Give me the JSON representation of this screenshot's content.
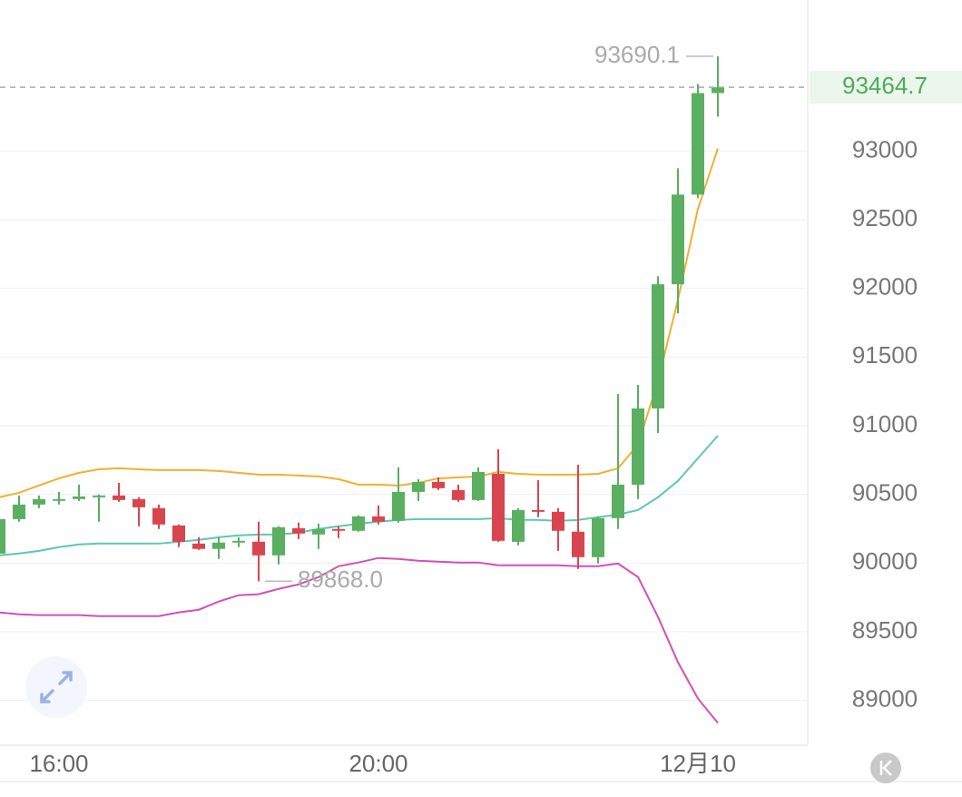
{
  "chart_data": {
    "type": "candlestick",
    "categories": [
      null,
      null,
      null,
      "16:00",
      null,
      null,
      null,
      null,
      null,
      null,
      null,
      null,
      null,
      null,
      null,
      null,
      null,
      null,
      null,
      "20:00",
      null,
      null,
      null,
      null,
      null,
      null,
      null,
      null,
      null,
      null,
      null,
      null,
      null,
      null,
      null,
      "12月10",
      null
    ],
    "open": [
      90069,
      90320,
      90426,
      90453,
      90466,
      90479,
      90492,
      90466,
      90400,
      90274,
      90142,
      90103,
      90149,
      90155,
      90056,
      90254,
      90208,
      90248,
      90235,
      90340,
      90307,
      90518,
      90591,
      90532,
      90459,
      90650,
      90155,
      90386,
      90373,
      90228,
      90043,
      90327,
      90571,
      91126,
      92030,
      92683,
      93422
    ],
    "high": [
      90334,
      90492,
      90492,
      90518,
      90571,
      90499,
      90584,
      90479,
      90426,
      90281,
      90188,
      90188,
      90188,
      90301,
      90268,
      90294,
      90287,
      90268,
      90347,
      90419,
      90697,
      90611,
      90624,
      90571,
      90697,
      90829,
      90400,
      90604,
      90400,
      90716,
      90340,
      91231,
      91297,
      92089,
      92875,
      93488,
      93690.1
    ],
    "low": [
      90056,
      90301,
      90400,
      90426,
      90452,
      90301,
      90446,
      90268,
      90248,
      90116,
      90096,
      90030,
      90116,
      89868,
      89990,
      90175,
      90103,
      90182,
      90228,
      90281,
      90294,
      90452,
      90532,
      90446,
      90452,
      90155,
      90129,
      90334,
      90089,
      89957,
      89997,
      90248,
      90466,
      90947,
      91819,
      92657,
      93251
    ],
    "close": [
      90320,
      90426,
      90466,
      90466,
      90485,
      90492,
      90459,
      90406,
      90281,
      90155,
      90103,
      90149,
      90162,
      90056,
      90261,
      90215,
      90248,
      90235,
      90340,
      90301,
      90518,
      90591,
      90545,
      90459,
      90664,
      90162,
      90386,
      90373,
      90235,
      90043,
      90327,
      90571,
      91126,
      92030,
      92683,
      93422,
      93464.7
    ],
    "up_color": "#5aaf60",
    "down_color": "#d9454f",
    "bands": [
      {
        "color": "#f0b030",
        "values": [
          90479,
          90512,
          90565,
          90617,
          90657,
          90683,
          90690,
          90683,
          90677,
          90677,
          90677,
          90670,
          90657,
          90644,
          90644,
          90637,
          90631,
          90611,
          90571,
          90571,
          90565,
          90584,
          90617,
          90624,
          90631,
          90664,
          90650,
          90644,
          90644,
          90644,
          90650,
          90690,
          90862,
          91324,
          91918,
          92578,
          93020
        ]
      },
      {
        "color": "#5cc9ae",
        "values": [
          90056,
          90070,
          90089,
          90116,
          90136,
          90142,
          90142,
          90142,
          90142,
          90155,
          90169,
          90188,
          90202,
          90208,
          90208,
          90221,
          90248,
          90268,
          90287,
          90301,
          90314,
          90320,
          90320,
          90320,
          90320,
          90327,
          90314,
          90314,
          90307,
          90314,
          90334,
          90353,
          90386,
          90479,
          90598,
          90763,
          90928
        ]
      },
      {
        "color": "#d44fb6",
        "values": [
          89641,
          89627,
          89621,
          89621,
          89621,
          89614,
          89614,
          89614,
          89614,
          89641,
          89660,
          89720,
          89766,
          89773,
          89812,
          89845,
          89898,
          89977,
          90004,
          90037,
          90030,
          90017,
          90010,
          90004,
          90004,
          89984,
          89984,
          89984,
          89984,
          89977,
          89977,
          89997,
          89898,
          89608,
          89278,
          89014,
          88835
        ]
      }
    ],
    "annotations": {
      "high": "93690.1",
      "low": "89868.0"
    },
    "ylim": [
      88680,
      94100
    ],
    "yticks": [
      89000,
      89500,
      90000,
      90500,
      91000,
      91500,
      92000,
      92500,
      93000
    ],
    "grid": true
  }
}
